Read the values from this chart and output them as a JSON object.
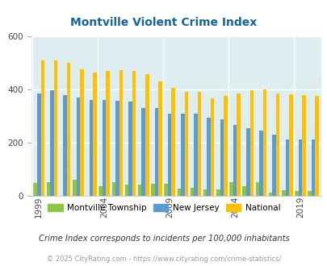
{
  "title": "Montville Violent Crime Index",
  "years": [
    1999,
    2000,
    2001,
    2002,
    2003,
    2004,
    2005,
    2006,
    2007,
    2008,
    2009,
    2010,
    2011,
    2012,
    2013,
    2014,
    2015,
    2016,
    2017,
    2018,
    2019,
    2020
  ],
  "montville": [
    48,
    50,
    0,
    60,
    0,
    35,
    50,
    42,
    42,
    43,
    43,
    27,
    30,
    22,
    22,
    50,
    35,
    50,
    10,
    20,
    17,
    17
  ],
  "new_jersey": [
    385,
    395,
    378,
    368,
    360,
    358,
    356,
    354,
    328,
    328,
    308,
    308,
    308,
    293,
    287,
    265,
    252,
    245,
    230,
    210,
    210,
    210
  ],
  "national": [
    507,
    507,
    500,
    473,
    463,
    468,
    472,
    467,
    456,
    430,
    405,
    390,
    390,
    365,
    375,
    383,
    395,
    400,
    385,
    380,
    378,
    375
  ],
  "ylim": [
    0,
    600
  ],
  "yticks": [
    0,
    200,
    400,
    600
  ],
  "xtick_years": [
    1999,
    2004,
    2009,
    2014,
    2019
  ],
  "color_montville": "#8dc63f",
  "color_nj": "#5b9bd5",
  "color_national": "#ffc000",
  "bg_color": "#deeef0",
  "title_color": "#1464a0",
  "subtitle": "Crime Index corresponds to incidents per 100,000 inhabitants",
  "footer": "© 2025 CityRating.com - https://www.cityrating.com/crime-statistics/",
  "legend_labels": [
    "Montville Township",
    "New Jersey",
    "National"
  ]
}
